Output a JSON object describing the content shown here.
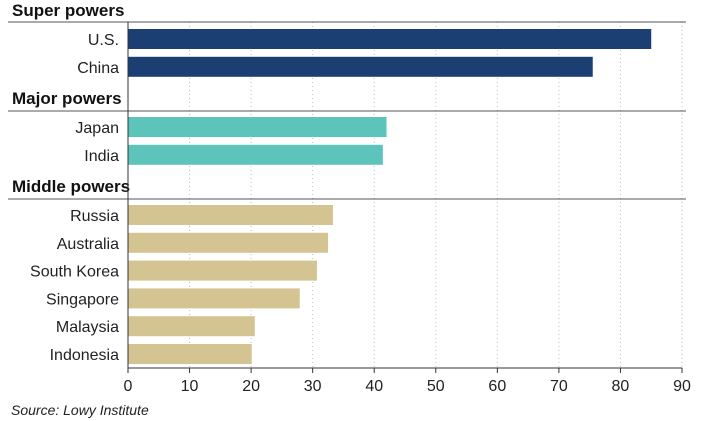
{
  "chart_data": {
    "type": "bar",
    "orientation": "horizontal",
    "title": "",
    "xlabel": "",
    "ylabel": "",
    "xlim": [
      0,
      90
    ],
    "x_ticks": [
      0,
      10,
      20,
      30,
      40,
      50,
      60,
      70,
      80,
      90
    ],
    "grid": true,
    "groups": [
      {
        "name": "Super powers",
        "color": "#1b3f73",
        "categories": [
          "U.S.",
          "China"
        ],
        "values": [
          85.0,
          75.5
        ]
      },
      {
        "name": "Major powers",
        "color": "#5cc4bb",
        "categories": [
          "Japan",
          "India"
        ],
        "values": [
          42.0,
          41.4
        ]
      },
      {
        "name": "Middle powers",
        "color": "#d3c492",
        "categories": [
          "Russia",
          "Australia",
          "South Korea",
          "Singapore",
          "Malaysia",
          "Indonesia"
        ],
        "values": [
          33.3,
          32.5,
          30.7,
          27.9,
          20.6,
          20.1
        ]
      }
    ]
  },
  "source": "Source: Lowy Institute"
}
